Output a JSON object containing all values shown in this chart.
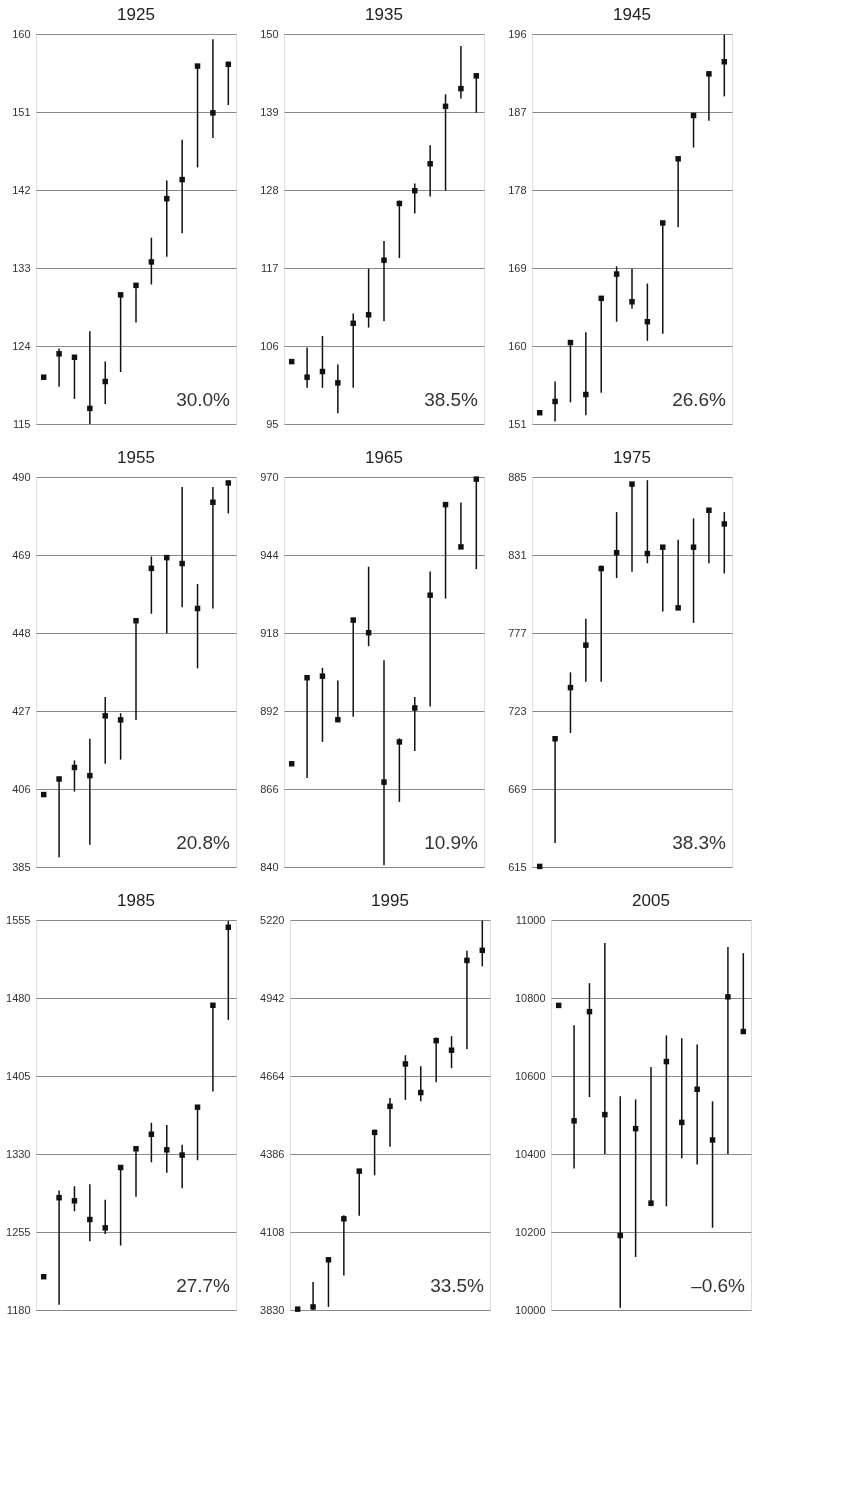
{
  "chart_data": [
    {
      "type": "scatter",
      "title": "1925",
      "categories": [
        null,
        null,
        null,
        null,
        null,
        null,
        null,
        null,
        null,
        null,
        null,
        null,
        null
      ],
      "color": "#111111",
      "marker": "square",
      "grid": "y",
      "tick_labels": "y",
      "ylim": [
        115,
        160
      ],
      "yticks": [
        115,
        124,
        133,
        142,
        151,
        160
      ],
      "annotations": [
        "30.0%"
      ],
      "values": [
        120.4,
        123.1,
        122.7,
        116.8,
        119.9,
        129.9,
        131.0,
        133.7,
        141.0,
        143.2,
        156.3,
        150.9,
        156.5
      ],
      "errors": [
        null,
        [
          119.3,
          123.7
        ],
        [
          117.9,
          122.8
        ],
        [
          115.0,
          125.7
        ],
        [
          117.3,
          122.2
        ],
        [
          121.0,
          129.9
        ],
        [
          126.7,
          131.2
        ],
        [
          131.1,
          136.5
        ],
        [
          134.3,
          143.1
        ],
        [
          137.0,
          147.8
        ],
        [
          144.6,
          156.4
        ],
        [
          148.0,
          159.4
        ],
        [
          151.8,
          156.8
        ]
      ]
    },
    {
      "type": "scatter",
      "title": "1935",
      "categories": [
        null,
        null,
        null,
        null,
        null,
        null,
        null,
        null,
        null,
        null,
        null,
        null,
        null
      ],
      "color": "#111111",
      "marker": "square",
      "grid": "y",
      "tick_labels": "y",
      "ylim": [
        95,
        150
      ],
      "yticks": [
        95,
        106,
        117,
        128,
        139,
        150
      ],
      "annotations": [
        "38.5%"
      ],
      "values": [
        103.8,
        101.6,
        102.4,
        100.8,
        109.2,
        110.4,
        118.1,
        126.1,
        127.9,
        131.7,
        139.8,
        142.3,
        144.1
      ],
      "errors": [
        null,
        [
          100.1,
          105.8
        ],
        [
          100.1,
          107.4
        ],
        [
          96.5,
          103.4
        ],
        [
          100.1,
          110.6
        ],
        [
          108.6,
          116.9
        ],
        [
          109.5,
          120.8
        ],
        [
          118.4,
          126.5
        ],
        [
          124.7,
          128.9
        ],
        [
          127.1,
          134.3
        ],
        [
          127.9,
          141.5
        ],
        [
          140.9,
          148.3
        ],
        [
          138.9,
          144.5
        ]
      ]
    },
    {
      "type": "scatter",
      "title": "1945",
      "categories": [
        null,
        null,
        null,
        null,
        null,
        null,
        null,
        null,
        null,
        null,
        null,
        null,
        null
      ],
      "color": "#111111",
      "marker": "square",
      "grid": "y",
      "tick_labels": "y",
      "ylim": [
        151,
        196
      ],
      "yticks": [
        151,
        160,
        169,
        178,
        187,
        196
      ],
      "annotations": [
        "26.6%"
      ],
      "values": [
        152.3,
        153.6,
        160.4,
        154.4,
        165.5,
        168.3,
        165.1,
        162.8,
        174.2,
        181.6,
        186.6,
        191.4,
        192.8
      ],
      "errors": [
        null,
        [
          151.3,
          155.9
        ],
        [
          153.5,
          160.4
        ],
        [
          152.0,
          161.6
        ],
        [
          154.6,
          165.6
        ],
        [
          162.8,
          169.2
        ],
        [
          164.3,
          168.9
        ],
        [
          160.6,
          167.2
        ],
        [
          161.4,
          174.3
        ],
        [
          173.7,
          181.6
        ],
        [
          182.9,
          186.7
        ],
        [
          186.0,
          191.7
        ],
        [
          188.8,
          195.9
        ]
      ]
    },
    {
      "type": "scatter",
      "title": "1955",
      "categories": [
        null,
        null,
        null,
        null,
        null,
        null,
        null,
        null,
        null,
        null,
        null,
        null,
        null
      ],
      "color": "#111111",
      "marker": "square",
      "grid": "y",
      "tick_labels": "y",
      "ylim": [
        385,
        490
      ],
      "yticks": [
        385,
        406,
        427,
        448,
        469,
        490
      ],
      "annotations": [
        "20.8%"
      ],
      "values": [
        404.5,
        408.7,
        411.8,
        409.6,
        425.7,
        424.6,
        451.3,
        465.4,
        468.3,
        466.7,
        454.6,
        483.2,
        488.4
      ],
      "errors": [
        null,
        [
          387.6,
          409.0
        ],
        [
          405.3,
          413.7
        ],
        [
          391.0,
          419.5
        ],
        [
          412.8,
          430.8
        ],
        [
          413.9,
          426.4
        ],
        [
          424.6,
          451.5
        ],
        [
          453.2,
          468.6
        ],
        [
          447.9,
          468.6
        ],
        [
          454.9,
          487.3
        ],
        [
          438.5,
          461.2
        ],
        [
          454.6,
          487.3
        ],
        [
          480.2,
          488.8
        ]
      ]
    },
    {
      "type": "scatter",
      "title": "1965",
      "categories": [
        null,
        null,
        null,
        null,
        null,
        null,
        null,
        null,
        null,
        null,
        null,
        null,
        null
      ],
      "color": "#111111",
      "marker": "square",
      "grid": "y",
      "tick_labels": "y",
      "ylim": [
        840,
        970
      ],
      "yticks": [
        840,
        866,
        892,
        918,
        944,
        970
      ],
      "annotations": [
        "10.9%"
      ],
      "values": [
        874.4,
        903.1,
        903.6,
        889.1,
        922.3,
        918.1,
        868.3,
        881.7,
        893.0,
        930.6,
        960.8,
        946.7,
        969.3
      ],
      "errors": [
        null,
        [
          869.7,
          903.3
        ],
        [
          881.7,
          906.4
        ],
        [
          888.7,
          902.2
        ],
        [
          890.1,
          922.6
        ],
        [
          913.6,
          940.1
        ],
        [
          840.6,
          908.9
        ],
        [
          861.7,
          882.9
        ],
        [
          878.7,
          896.7
        ],
        [
          893.5,
          938.5
        ],
        [
          929.5,
          961.5
        ],
        [
          946.0,
          961.5
        ],
        [
          939.3,
          970.0
        ]
      ]
    },
    {
      "type": "scatter",
      "title": "1975",
      "categories": [
        null,
        null,
        null,
        null,
        null,
        null,
        null,
        null,
        null,
        null,
        null,
        null,
        null
      ],
      "color": "#111111",
      "marker": "square",
      "grid": "y",
      "tick_labels": "y",
      "ylim": [
        615,
        885
      ],
      "yticks": [
        615,
        669,
        723,
        777,
        831,
        885
      ],
      "annotations": [
        "38.3%"
      ],
      "values": [
        615.4,
        703.8,
        739.2,
        768.6,
        821.6,
        832.6,
        880.1,
        832.0,
        836.4,
        794.4,
        836.4,
        862.0,
        852.5
      ],
      "errors": [
        null,
        [
          631.6,
          705.6
        ],
        [
          707.8,
          749.8
        ],
        [
          743.2,
          786.9
        ],
        [
          743.2,
          823.8
        ],
        [
          815.0,
          860.7
        ],
        [
          819.4,
          881.2
        ],
        [
          825.3,
          882.8
        ],
        [
          791.8,
          837.7
        ],
        [
          794.0,
          841.5
        ],
        [
          784.0,
          856.3
        ],
        [
          825.3,
          862.9
        ],
        [
          818.3,
          860.7
        ]
      ]
    },
    {
      "type": "scatter",
      "title": "1985",
      "categories": [
        null,
        null,
        null,
        null,
        null,
        null,
        null,
        null,
        null,
        null,
        null,
        null,
        null
      ],
      "color": "#111111",
      "marker": "square",
      "grid": "y",
      "tick_labels": "y",
      "ylim": [
        1180,
        1555
      ],
      "yticks": [
        1180,
        1255,
        1330,
        1405,
        1480,
        1555
      ],
      "annotations": [
        "27.7%"
      ],
      "values": [
        1212,
        1288,
        1285,
        1267,
        1259,
        1317,
        1335,
        1349,
        1334,
        1329,
        1375,
        1473,
        1548
      ],
      "errors": [
        null,
        [
          1185,
          1295
        ],
        [
          1275,
          1299
        ],
        [
          1246,
          1301
        ],
        [
          1253,
          1286
        ],
        [
          1242,
          1319
        ],
        [
          1289,
          1337
        ],
        [
          1322,
          1360
        ],
        [
          1312,
          1358
        ],
        [
          1297,
          1339
        ],
        [
          1324,
          1377
        ],
        [
          1390,
          1475
        ],
        [
          1459,
          1554
        ]
      ]
    },
    {
      "type": "scatter",
      "title": "1995",
      "categories": [
        null,
        null,
        null,
        null,
        null,
        null,
        null,
        null,
        null,
        null,
        null,
        null,
        null
      ],
      "color": "#111111",
      "marker": "square",
      "grid": "y",
      "tick_labels": "y",
      "ylim": [
        3830,
        5220
      ],
      "yticks": [
        3830,
        4108,
        4386,
        4664,
        4942,
        5220
      ],
      "annotations": [
        "33.5%"
      ],
      "values": [
        3833,
        3841,
        4009,
        4155,
        4325,
        4463,
        4556,
        4707,
        4605,
        4790,
        4756,
        5076,
        5112
      ],
      "errors": [
        null,
        [
          3830,
          3930
        ],
        [
          3841,
          4015
        ],
        [
          3953,
          4168
        ],
        [
          4166,
          4327
        ],
        [
          4310,
          4472
        ],
        [
          4412,
          4586
        ],
        [
          4579,
          4738
        ],
        [
          4574,
          4699
        ],
        [
          4642,
          4801
        ],
        [
          4692,
          4806
        ],
        [
          4760,
          5110
        ],
        [
          5055,
          5218
        ]
      ]
    },
    {
      "type": "scatter",
      "title": "2005",
      "categories": [
        null,
        null,
        null,
        null,
        null,
        null,
        null,
        null,
        null,
        null,
        null,
        null,
        null
      ],
      "color": "#111111",
      "marker": "square",
      "grid": "y",
      "tick_labels": "y",
      "ylim": [
        10000,
        11000
      ],
      "yticks": [
        10000,
        10200,
        10400,
        10600,
        10800,
        11000
      ],
      "annotations": [
        "–0.6%"
      ],
      "values": [
        10781,
        10485,
        10765,
        10501,
        10191,
        10465,
        10274,
        10637,
        10481,
        10566,
        10436,
        10803,
        10714
      ],
      "errors": [
        null,
        [
          10363,
          10730
        ],
        [
          10546,
          10838
        ],
        [
          10400,
          10941
        ],
        [
          10006,
          10548
        ],
        [
          10136,
          10540
        ],
        [
          10266,
          10623
        ],
        [
          10266,
          10704
        ],
        [
          10389,
          10697
        ],
        [
          10373,
          10681
        ],
        [
          10211,
          10535
        ],
        [
          10400,
          10931
        ],
        [
          10714,
          10915
        ]
      ]
    }
  ]
}
